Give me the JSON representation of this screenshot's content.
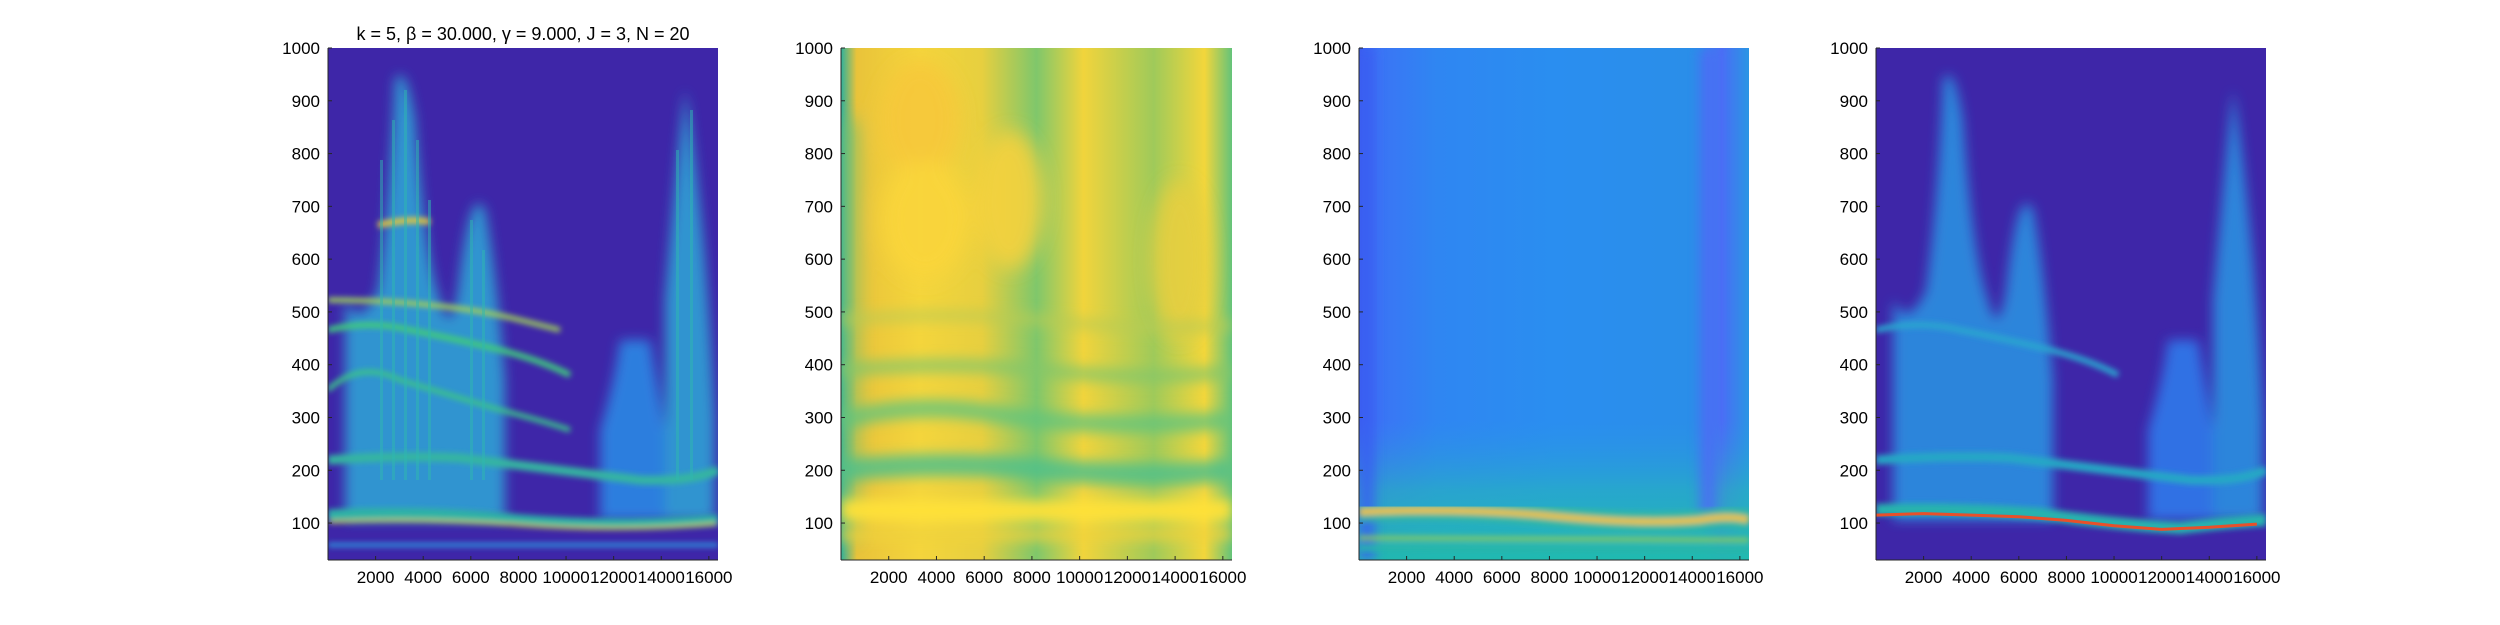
{
  "chart_data": [
    {
      "type": "heatmap",
      "title": "k = 5, β = 30.000, γ = 9.000, J = 3, N = 20",
      "xlabel": "",
      "ylabel": "",
      "xlim": [
        0,
        16384
      ],
      "ylim": [
        30,
        1000
      ],
      "xticks": [
        "2000",
        "4000",
        "6000",
        "8000",
        "10000",
        "12000",
        "14000",
        "16000"
      ],
      "yticks": [
        "100",
        "200",
        "300",
        "400",
        "500",
        "600",
        "700",
        "800",
        "900",
        "1000"
      ],
      "colormap": "parula",
      "background_color": "#3e26a8",
      "bands": [
        {
          "y": 110,
          "intensity": 0.75
        },
        {
          "y": 215,
          "intensity": 0.55
        },
        {
          "y": 330,
          "intensity": 0.55
        },
        {
          "y": 430,
          "intensity": 0.5
        },
        {
          "y": 560,
          "intensity": 0.45
        },
        {
          "y": 660,
          "intensity": 0.5
        }
      ],
      "blobs": [
        {
          "x": [
            1500,
            4200
          ],
          "y": [
            60,
            960
          ],
          "intensity": 0.4
        },
        {
          "x": [
            5300,
            7300
          ],
          "y": [
            60,
            750
          ],
          "intensity": 0.38
        },
        {
          "x": [
            11000,
            13000
          ],
          "y": [
            340,
            520
          ],
          "intensity": 0.3
        },
        {
          "x": [
            14000,
            16200
          ],
          "y": [
            200,
            930
          ],
          "intensity": 0.35
        }
      ]
    },
    {
      "type": "heatmap",
      "title": "",
      "xlabel": "",
      "ylabel": "",
      "xlim": [
        0,
        16384
      ],
      "ylim": [
        30,
        1000
      ],
      "xticks": [
        "2000",
        "4000",
        "6000",
        "8000",
        "10000",
        "12000",
        "14000",
        "16000"
      ],
      "yticks": [
        "100",
        "200",
        "300",
        "400",
        "500",
        "600",
        "700",
        "800",
        "900",
        "1000"
      ],
      "colormap": "parula",
      "background_color": "#f7d83a",
      "bands": [
        {
          "y": 90,
          "intensity": 0.95
        },
        {
          "y": 165,
          "intensity": 0.6
        },
        {
          "y": 255,
          "intensity": 0.6
        },
        {
          "y": 330,
          "intensity": 0.55
        },
        {
          "y": 420,
          "intensity": 0.55
        }
      ]
    },
    {
      "type": "heatmap",
      "title": "",
      "xlabel": "",
      "ylabel": "",
      "xlim": [
        0,
        16384
      ],
      "ylim": [
        30,
        1000
      ],
      "xticks": [
        "2000",
        "4000",
        "6000",
        "8000",
        "10000",
        "12000",
        "14000",
        "16000"
      ],
      "yticks": [
        "100",
        "200",
        "300",
        "400",
        "500",
        "600",
        "700",
        "800",
        "900",
        "1000"
      ],
      "colormap": "parula",
      "background_color": "#2f86f2",
      "bands": [
        {
          "y": 105,
          "intensity": 0.85
        },
        {
          "y": 60,
          "intensity": 0.5
        }
      ]
    },
    {
      "type": "heatmap",
      "title": "",
      "xlabel": "",
      "ylabel": "",
      "xlim": [
        0,
        16384
      ],
      "ylim": [
        30,
        1000
      ],
      "xticks": [
        "2000",
        "4000",
        "6000",
        "8000",
        "10000",
        "12000",
        "14000",
        "16000"
      ],
      "yticks": [
        "100",
        "200",
        "300",
        "400",
        "500",
        "600",
        "700",
        "800",
        "900",
        "1000"
      ],
      "colormap": "parula",
      "background_color": "#3e26a8",
      "ridge_line": [
        {
          "x": 0,
          "y": 115
        },
        {
          "x": 2000,
          "y": 118
        },
        {
          "x": 4000,
          "y": 115
        },
        {
          "x": 6000,
          "y": 112
        },
        {
          "x": 8000,
          "y": 105
        },
        {
          "x": 10000,
          "y": 95
        },
        {
          "x": 12000,
          "y": 88
        },
        {
          "x": 14000,
          "y": 92
        },
        {
          "x": 16000,
          "y": 98
        }
      ]
    }
  ]
}
